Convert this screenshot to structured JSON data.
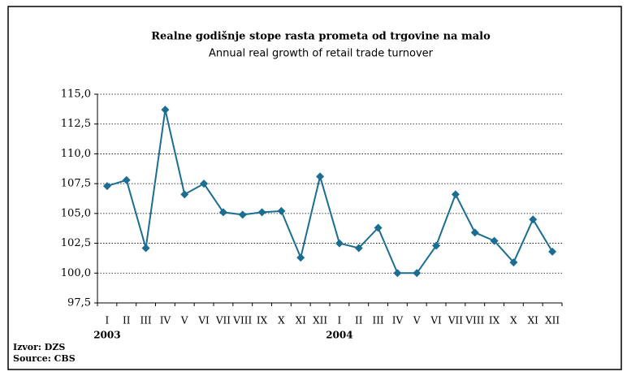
{
  "chart_data": {
    "type": "line",
    "title": "Realne godišnje stope rasta prometa od trgovine na malo",
    "subtitle": "Annual real growth of retail trade turnover",
    "categories": [
      "I",
      "II",
      "III",
      "IV",
      "V",
      "VI",
      "VII",
      "VIII",
      "IX",
      "X",
      "XI",
      "XII",
      "I",
      "II",
      "III",
      "IV",
      "V",
      "VI",
      "VII",
      "VIII",
      "IX",
      "X",
      "XI",
      "XII"
    ],
    "series": [
      {
        "name": "Annual real growth of retail trade turnover",
        "color": "#1b6e91",
        "values": [
          107.3,
          107.8,
          102.1,
          113.7,
          106.6,
          107.5,
          105.1,
          104.9,
          105.1,
          105.2,
          101.3,
          108.1,
          102.5,
          102.1,
          103.8,
          100.0,
          100.0,
          102.3,
          106.6,
          103.4,
          102.7,
          100.9,
          104.5,
          101.8
        ]
      }
    ],
    "ylim": [
      97.5,
      115
    ],
    "yticks": [
      {
        "value": 97.5,
        "label": "97,5"
      },
      {
        "value": 100,
        "label": "100,0"
      },
      {
        "value": 102.5,
        "label": "102,5"
      },
      {
        "value": 105,
        "label": "105,0"
      },
      {
        "value": 107.5,
        "label": "107,5"
      },
      {
        "value": 110,
        "label": "110,0"
      },
      {
        "value": 112.5,
        "label": "112,5"
      },
      {
        "value": 115,
        "label": "115,0"
      }
    ],
    "grid": true,
    "annotations": [
      "2003",
      "2004"
    ],
    "source": [
      "Izvor: DZS",
      "Source: CBS"
    ]
  }
}
